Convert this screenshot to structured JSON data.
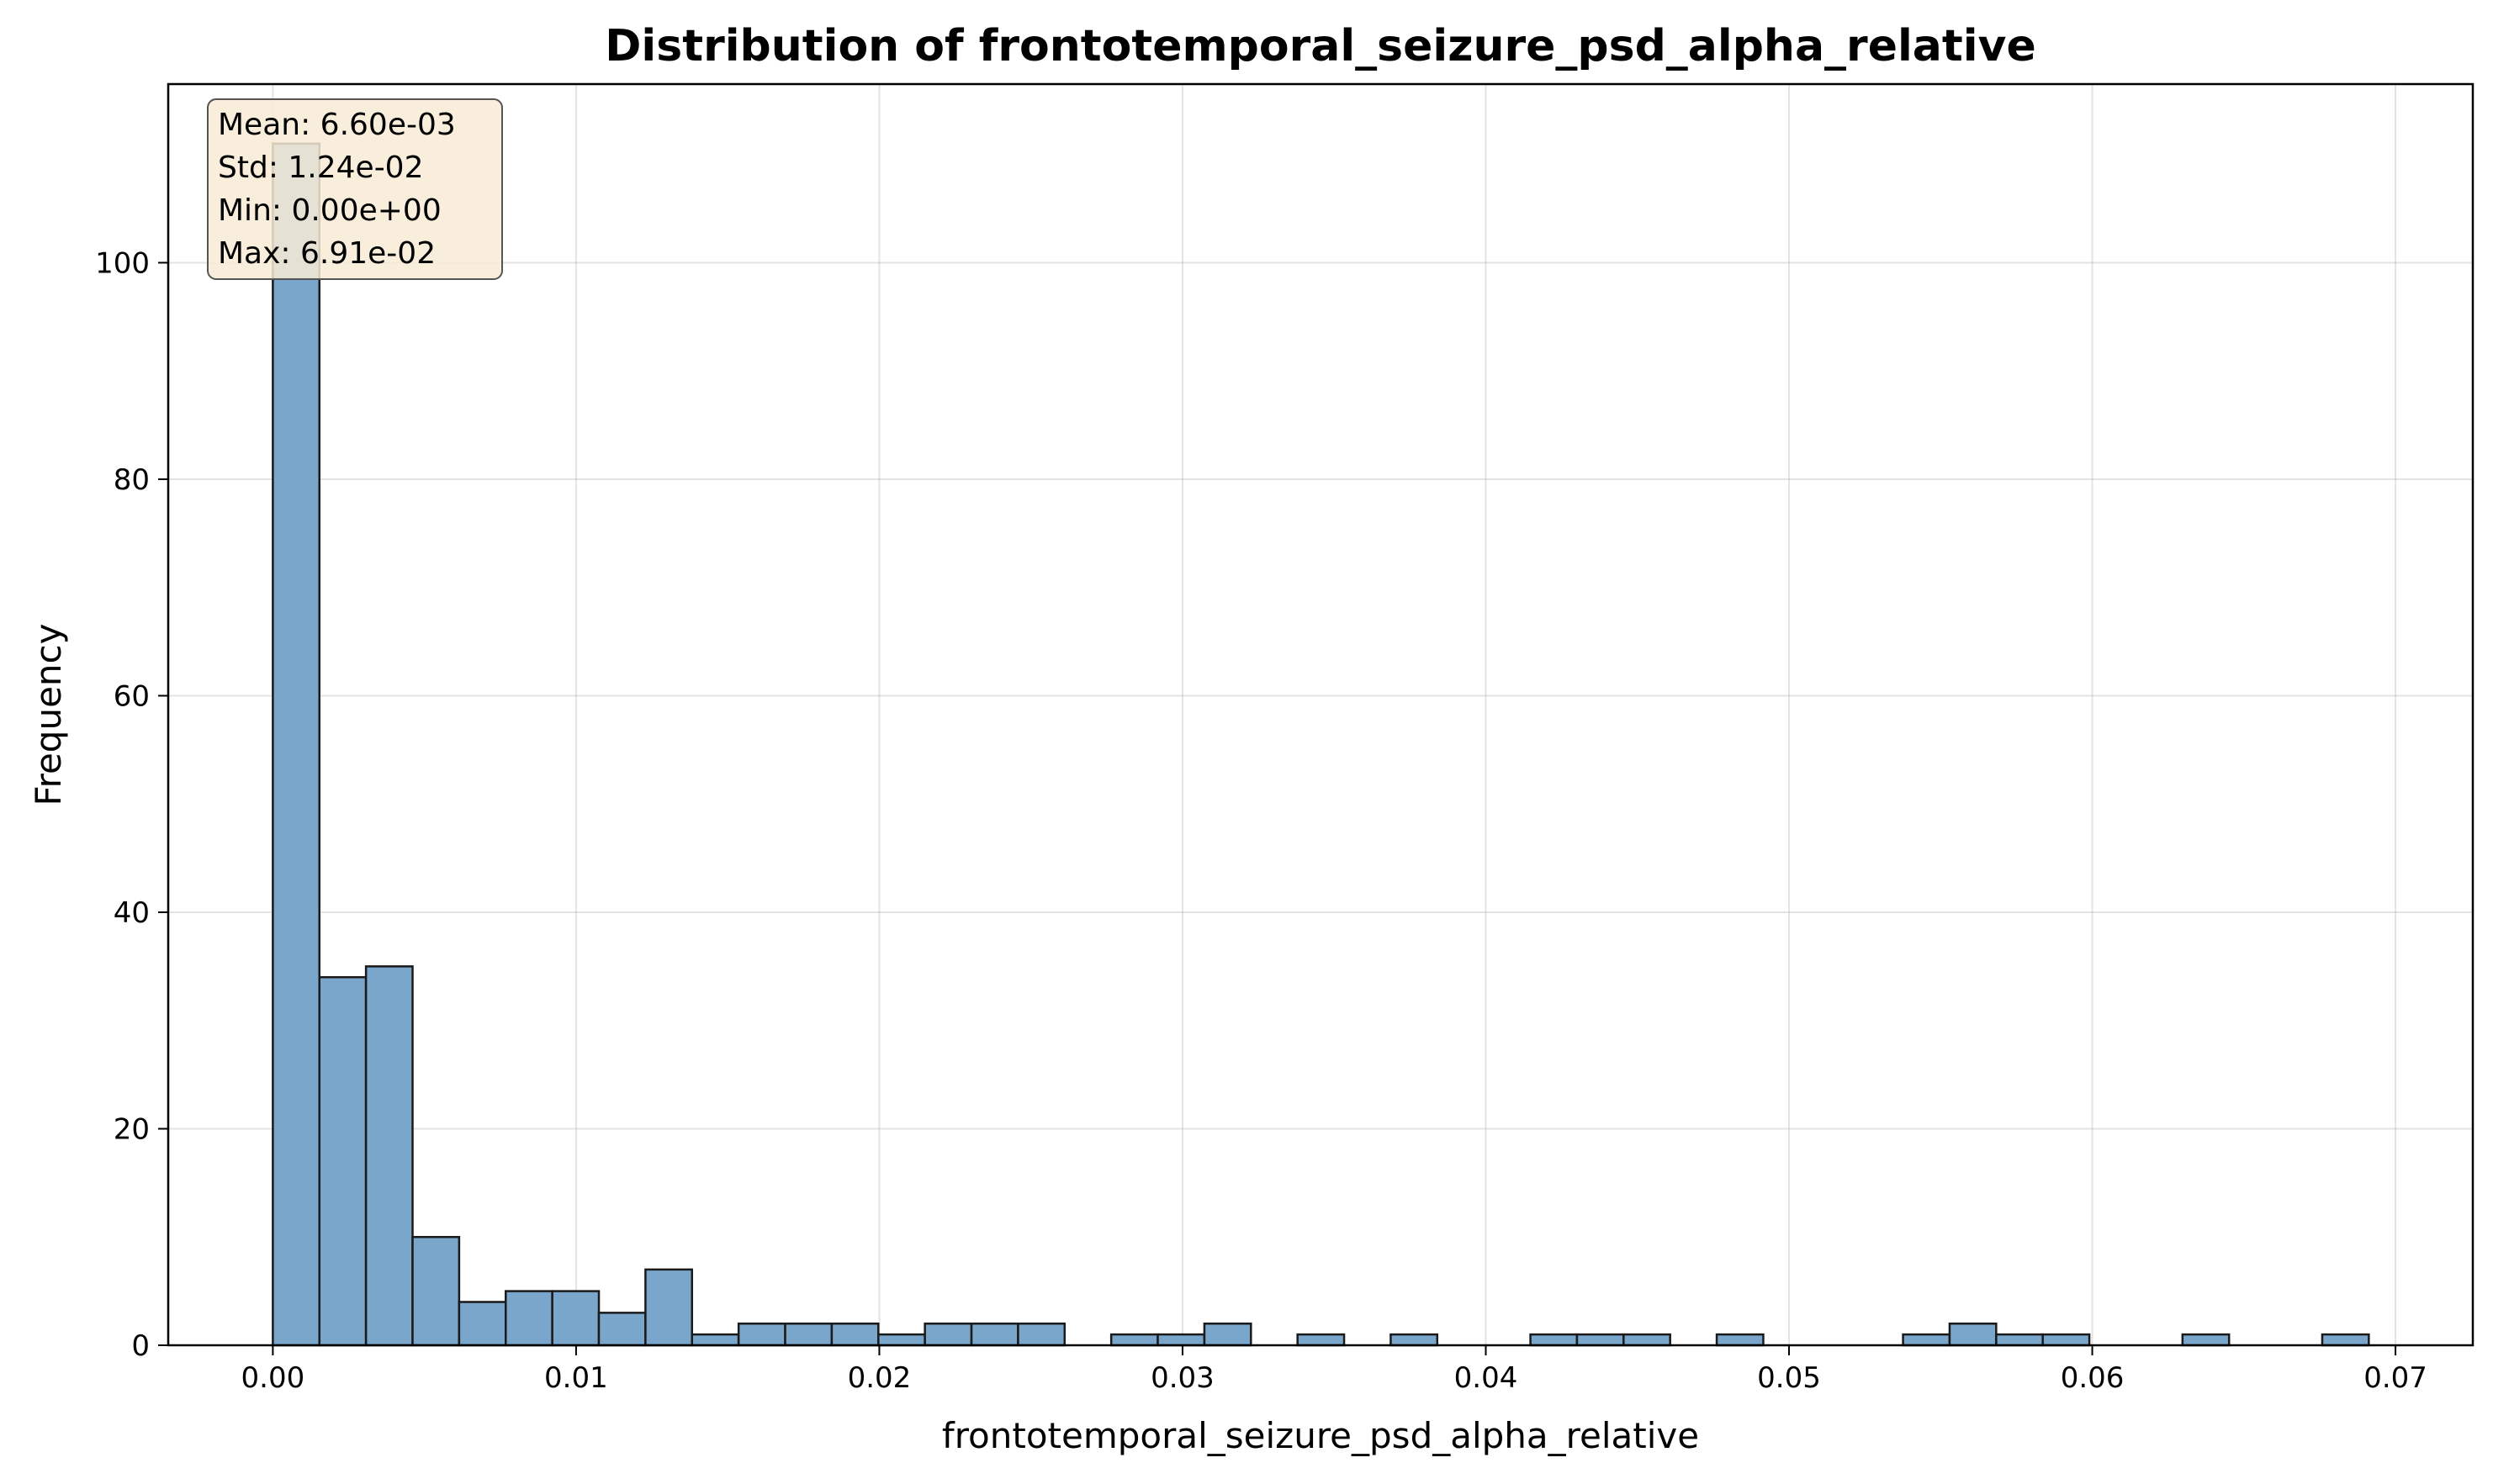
{
  "chart_data": {
    "type": "bar",
    "title": "Distribution of frontotemporal_seizure_psd_alpha_relative",
    "xlabel": "frontotemporal_seizure_psd_alpha_relative",
    "ylabel": "Frequency",
    "xlim": [
      -0.00345,
      0.07255
    ],
    "ylim": [
      0,
      116.5
    ],
    "x_ticks": [
      0.0,
      0.01,
      0.02,
      0.03,
      0.04,
      0.05,
      0.06,
      0.07
    ],
    "x_tick_labels": [
      "0.00",
      "0.01",
      "0.02",
      "0.03",
      "0.04",
      "0.05",
      "0.06",
      "0.07"
    ],
    "y_ticks": [
      0,
      20,
      40,
      60,
      80,
      100
    ],
    "y_tick_labels": [
      "0",
      "20",
      "40",
      "60",
      "80",
      "100"
    ],
    "grid": true,
    "bin_start": 0.0,
    "bin_width": 0.001536,
    "values": [
      111,
      34,
      35,
      10,
      4,
      5,
      5,
      3,
      7,
      1,
      2,
      2,
      2,
      1,
      2,
      2,
      2,
      0,
      1,
      1,
      2,
      0,
      1,
      0,
      1,
      0,
      0,
      1,
      1,
      1,
      0,
      1,
      0,
      0,
      0,
      1,
      2,
      1,
      1,
      0,
      0,
      1,
      0,
      0,
      1
    ],
    "bar_color": "#7aa6cc",
    "edge_color": "#1a1a1a",
    "annotations": [
      "Mean: 6.60e-03",
      "Std: 1.24e-02",
      "Min: 0.00e+00",
      "Max: 6.91e-02"
    ],
    "annotation_box_color": "#f8ebd6"
  }
}
